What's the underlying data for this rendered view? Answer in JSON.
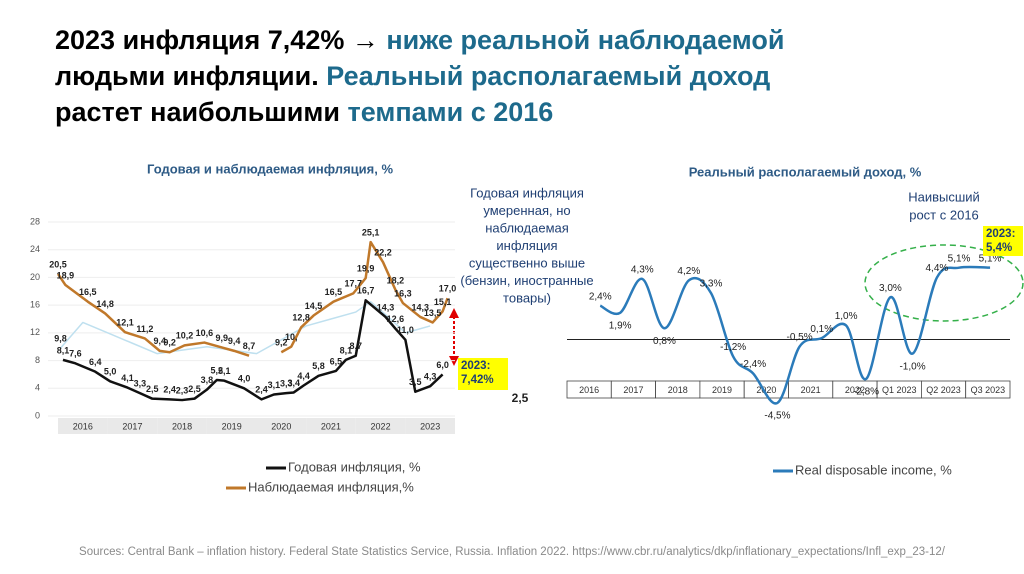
{
  "title_lines": [
    [
      {
        "text": "2023 инфляция 7,42% → ",
        "color": "#000000"
      },
      {
        "text": "ниже реальной наблюдаемой",
        "color": "#1d6a8c"
      }
    ],
    [
      {
        "text": "людьми инфляции. ",
        "color": "#000000"
      },
      {
        "text": "Реальный располагаемый доход",
        "color": "#1d6a8c"
      }
    ],
    [
      {
        "text": "растет наибольшими ",
        "color": "#000000"
      },
      {
        "text": "темпами с 2016",
        "color": "#1d6a8c"
      }
    ]
  ],
  "chart_data": [
    {
      "type": "line",
      "title": "Годовая и наблюдаемая инфляция, %",
      "xlim": [
        2016,
        2024
      ],
      "xticks": [
        {
          "value": 2016.5,
          "label": "2016"
        },
        {
          "value": 2017.5,
          "label": "2017"
        },
        {
          "value": 2018.5,
          "label": "2018"
        },
        {
          "value": 2019.5,
          "label": "2019"
        },
        {
          "value": 2020.5,
          "label": "2020"
        },
        {
          "value": 2021.5,
          "label": "2021"
        },
        {
          "value": 2022.5,
          "label": "2022"
        },
        {
          "value": 2023.5,
          "label": "2023"
        }
      ],
      "ylim": [
        0,
        28
      ],
      "yticks": [
        0,
        4,
        8,
        12,
        16,
        20,
        24,
        28
      ],
      "grid": true,
      "series": [
        {
          "color": "#bfe0ef",
          "x": [
            2016.05,
            2016.5,
            2017,
            2017.5,
            2018,
            2018.5,
            2019,
            2019.5,
            2020,
            2020.5,
            2021,
            2021.5,
            2022,
            2022.3,
            2022.7,
            2023,
            2023.5
          ],
          "values": [
            9.8,
            13.5,
            12,
            10.5,
            9,
            9.5,
            10,
            9.5,
            9,
            11,
            13,
            14,
            15,
            16.5,
            14,
            12,
            13
          ],
          "value_labels": [
            "9,8",
            null,
            null,
            null,
            null,
            null,
            null,
            null,
            null,
            null,
            null,
            null,
            null,
            null,
            null,
            null,
            null
          ]
        },
        {
          "name": "Годовая инфляция, %",
          "color": "#111111",
          "x": [
            2016.1,
            2016.35,
            2016.75,
            2017.05,
            2017.4,
            2017.65,
            2017.9,
            2018.25,
            2018.5,
            2018.75,
            2019.0,
            2019.2,
            2019.35,
            2019.75,
            2020.1,
            2020.35,
            2020.6,
            2020.75,
            2020.95,
            2021.25,
            2021.6,
            2021.8,
            2022.0,
            2022.2,
            2022.6,
            2022.8,
            2023.0,
            2023.2,
            2023.5,
            2023.75
          ],
          "values": [
            8.1,
            7.6,
            6.4,
            5.0,
            4.1,
            3.3,
            2.5,
            2.4,
            2.3,
            2.5,
            3.8,
            5.2,
            5.1,
            4.0,
            2.4,
            3.1,
            3.3,
            3.4,
            4.4,
            5.8,
            6.5,
            8.1,
            8.7,
            16.7,
            14.3,
            12.6,
            11.0,
            3.5,
            4.3,
            6.0
          ],
          "value_labels": [
            "8,1",
            "7,6",
            "6,4",
            "5,0",
            "4,1",
            "3,3",
            "2,5",
            "2,4",
            "2,3",
            "2,5",
            "3,8",
            "5,2",
            "5,1",
            "4,0",
            "2,4",
            "3,1",
            "3,3",
            "3,4",
            "4,4",
            "5,8",
            "6,5",
            "8,1",
            "8,7",
            "16,7",
            "14,3",
            "12,6",
            "11,0",
            "3,5",
            "4,3",
            "6,0"
          ]
        },
        {
          "name": "Наблюдаемая инфляция,%",
          "color": "#c0782a",
          "x": [
            2016.0,
            2016.15,
            2016.6,
            2016.95,
            2017.35,
            2017.75,
            2018.05,
            2018.25,
            2018.55,
            2018.95,
            2019.3,
            2019.55,
            2019.85,
            2020.2,
            2020.5,
            2020.7,
            2020.9,
            2021.15,
            2021.55,
            2021.95,
            2022.2,
            2022.3,
            2022.55,
            2022.8,
            2022.95,
            2023.3,
            2023.55,
            2023.75,
            2023.85
          ],
          "values": [
            20.5,
            18.9,
            16.5,
            14.8,
            12.1,
            11.2,
            9.4,
            9.2,
            10.2,
            10.6,
            9.9,
            9.4,
            8.7,
            null,
            9.2,
            10,
            12.8,
            14.5,
            16.5,
            17.7,
            19.9,
            25.1,
            22.2,
            18.2,
            16.3,
            14.3,
            13.5,
            15.1,
            17.0
          ],
          "value_labels": [
            "20,5",
            "18,9",
            "16,5",
            "14,8",
            "12,1",
            "11,2",
            "9,4",
            "9,2",
            "10,2",
            "10,6",
            "9,9",
            "9,4",
            "8,7",
            null,
            "9,2",
            "10,",
            "12,8",
            "14,5",
            "16,5",
            "17,7",
            "19,9",
            "25,1",
            "22,2",
            "18,2",
            "16,3",
            "14,3",
            "13,5",
            "15,1",
            "17,0"
          ]
        }
      ],
      "note_lines": [
        "Годовая инфляция",
        "умеренная, но",
        "наблюдаемая",
        "инфляция",
        "существенно выше",
        "(бензин, иностранные",
        "товары)"
      ],
      "callout": [
        "2023:",
        "7,42%"
      ],
      "side_label": "2,5"
    },
    {
      "type": "line",
      "title": "Реальный располагаемый доход, %",
      "smooth": true,
      "xlim": [
        0,
        10
      ],
      "xticks": [
        {
          "value": 0.5,
          "label": "2016"
        },
        {
          "value": 1.5,
          "label": "2017"
        },
        {
          "value": 2.5,
          "label": "2018"
        },
        {
          "value": 3.5,
          "label": "2019"
        },
        {
          "value": 4.5,
          "label": "2020"
        },
        {
          "value": 5.5,
          "label": "2021"
        },
        {
          "value": 6.5,
          "label": "2022"
        },
        {
          "value": 7.5,
          "label": "Q1 2023"
        },
        {
          "value": 8.5,
          "label": "Q2 2023"
        },
        {
          "value": 9.5,
          "label": "Q3 2023"
        }
      ],
      "ylim": [
        -5,
        6
      ],
      "series": [
        {
          "name": "Real disposable income, %",
          "color": "#2b7bba",
          "x": [
            0.75,
            1.2,
            1.7,
            2.2,
            2.75,
            3.25,
            3.75,
            4.2,
            4.75,
            5.25,
            5.75,
            6.3,
            6.75,
            7.3,
            7.8,
            8.35,
            8.85,
            9.55
          ],
          "values": [
            2.4,
            1.9,
            4.3,
            0.8,
            4.2,
            3.3,
            -1.2,
            -2.4,
            -4.5,
            -0.5,
            0.1,
            1.0,
            -2.8,
            3.0,
            -1.0,
            4.4,
            5.1,
            5.1
          ],
          "value_labels": [
            "2,4%",
            "1,9%",
            "4,3%",
            "0,8%",
            "4,2%",
            "3,3%",
            "-1,2%",
            "-2,4%",
            "-4,5%",
            "-0,5%",
            "0,1%",
            "1,0%",
            "-2,8%",
            "3,0%",
            "-1,0%",
            "4,4%",
            "5,1%",
            "5,1%"
          ]
        }
      ],
      "note_lines": [
        "Наивысший",
        "рост с 2016"
      ],
      "callout": [
        "2023:",
        "5,4%"
      ]
    }
  ],
  "source": "Sources: Central Bank – inflation history. Federal State Statistics Service, Russia. Inflation 2022. https://www.cbr.ru/analytics/dkp/inflationary_expectations/Infl_exp_23-12/"
}
